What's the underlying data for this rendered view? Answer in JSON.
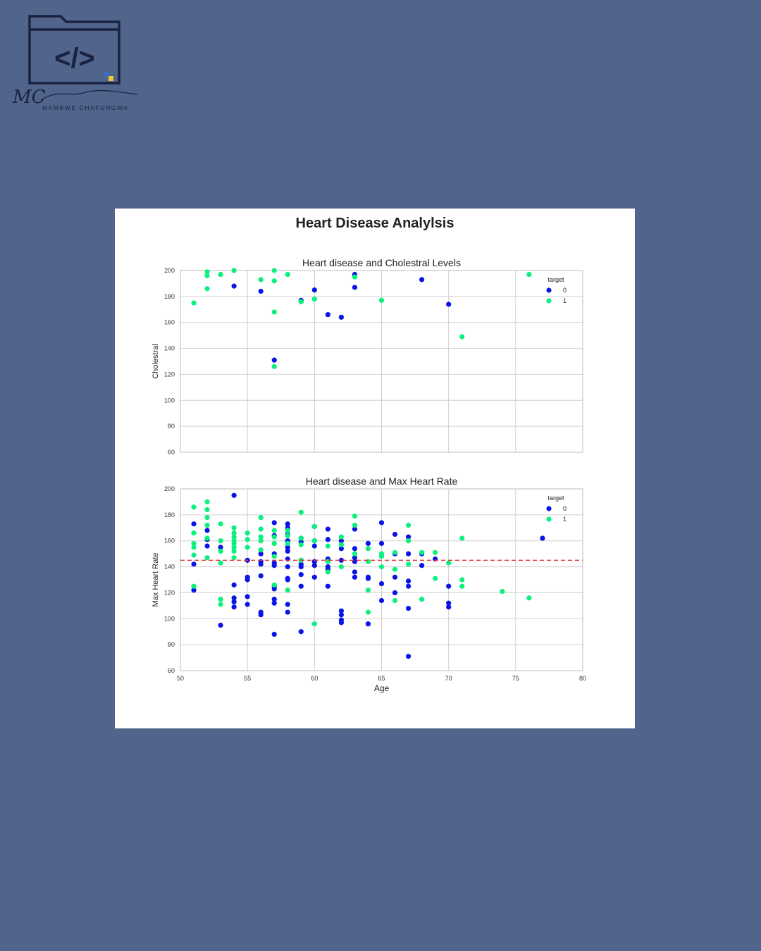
{
  "brand": {
    "monogram": "MC",
    "name": "MAMBWE CHAFUNGWA",
    "code_symbol": "</>"
  },
  "figure": {
    "title": "Heart Disease Analylsis"
  },
  "colors": {
    "target_0": "#0a14e6",
    "target_1": "#0cf07e",
    "mean_line": "#e53935",
    "background": "#50648c"
  },
  "chart_data": [
    {
      "type": "scatter",
      "title": "Heart disease and Cholestral Levels",
      "xlabel": "",
      "ylabel": "Cholestral",
      "xlim": [
        50,
        80
      ],
      "ylim": [
        60,
        200
      ],
      "xticks": [
        "50",
        "55",
        "60",
        "65",
        "70",
        "75",
        "80"
      ],
      "yticks": [
        "60",
        "80",
        "100",
        "120",
        "140",
        "160",
        "180",
        "200"
      ],
      "show_xtick_labels": false,
      "grid": true,
      "legend": {
        "title": "target",
        "position": "top-right",
        "entries": [
          "0",
          "1"
        ]
      },
      "series": [
        {
          "name": "0",
          "color": "#0a14e6",
          "points": [
            [
              54,
              188
            ],
            [
              56,
              184
            ],
            [
              57,
              131
            ],
            [
              59,
              176
            ],
            [
              59,
              177
            ],
            [
              60,
              185
            ],
            [
              61,
              166
            ],
            [
              62,
              164
            ],
            [
              63,
              197
            ],
            [
              63,
              187
            ],
            [
              68,
              193
            ],
            [
              70,
              174
            ]
          ]
        },
        {
          "name": "1",
          "color": "#0cf07e",
          "points": [
            [
              51,
              175
            ],
            [
              52,
              196
            ],
            [
              52,
              199
            ],
            [
              52,
              186
            ],
            [
              53,
              197
            ],
            [
              54,
              200
            ],
            [
              56,
              193
            ],
            [
              57,
              200
            ],
            [
              57,
              192
            ],
            [
              57,
              168
            ],
            [
              57,
              126
            ],
            [
              58,
              197
            ],
            [
              59,
              176
            ],
            [
              60,
              178
            ],
            [
              63,
              195
            ],
            [
              65,
              177
            ],
            [
              71,
              149
            ],
            [
              76,
              197
            ]
          ]
        }
      ]
    },
    {
      "type": "scatter",
      "title": "Heart disease and Max Heart Rate",
      "xlabel": "Age",
      "ylabel": "Max Heart Rate",
      "xlim": [
        50,
        80
      ],
      "ylim": [
        60,
        200
      ],
      "xticks": [
        "50",
        "55",
        "60",
        "65",
        "70",
        "75",
        "80"
      ],
      "yticks": [
        "60",
        "80",
        "100",
        "120",
        "140",
        "160",
        "180",
        "200"
      ],
      "show_xtick_labels": true,
      "grid": true,
      "mean_line": 145,
      "legend": {
        "title": "target",
        "position": "top-right",
        "entries": [
          "0",
          "1"
        ]
      },
      "series": [
        {
          "name": "0",
          "color": "#0a14e6",
          "points": [
            [
              51,
              173
            ],
            [
              51,
              142
            ],
            [
              51,
              122
            ],
            [
              52,
              168
            ],
            [
              52,
              161
            ],
            [
              52,
              156
            ],
            [
              53,
              155
            ],
            [
              53,
              95
            ],
            [
              54,
              195
            ],
            [
              54,
              126
            ],
            [
              54,
              116
            ],
            [
              54,
              113
            ],
            [
              54,
              109
            ],
            [
              55,
              145
            ],
            [
              55,
              132
            ],
            [
              55,
              130
            ],
            [
              55,
              117
            ],
            [
              55,
              111
            ],
            [
              56,
              150
            ],
            [
              56,
              144
            ],
            [
              56,
              142
            ],
            [
              56,
              133
            ],
            [
              56,
              105
            ],
            [
              56,
              103
            ],
            [
              57,
              174
            ],
            [
              57,
              164
            ],
            [
              57,
              150
            ],
            [
              57,
              143
            ],
            [
              57,
              141
            ],
            [
              57,
              125
            ],
            [
              57,
              123
            ],
            [
              57,
              115
            ],
            [
              57,
              112
            ],
            [
              57,
              88
            ],
            [
              58,
              173
            ],
            [
              58,
              170
            ],
            [
              58,
              165
            ],
            [
              58,
              160
            ],
            [
              58,
              155
            ],
            [
              58,
              152
            ],
            [
              58,
              146
            ],
            [
              58,
              140
            ],
            [
              58,
              131
            ],
            [
              58,
              130
            ],
            [
              58,
              111
            ],
            [
              58,
              105
            ],
            [
              59,
              162
            ],
            [
              59,
              159
            ],
            [
              59,
              145
            ],
            [
              59,
              142
            ],
            [
              59,
              140
            ],
            [
              59,
              134
            ],
            [
              59,
              125
            ],
            [
              59,
              90
            ],
            [
              60,
              171
            ],
            [
              60,
              160
            ],
            [
              60,
              156
            ],
            [
              60,
              144
            ],
            [
              60,
              141
            ],
            [
              60,
              132
            ],
            [
              61,
              169
            ],
            [
              61,
              161
            ],
            [
              61,
              146
            ],
            [
              61,
              140
            ],
            [
              61,
              138
            ],
            [
              61,
              125
            ],
            [
              62,
              160
            ],
            [
              62,
              154
            ],
            [
              62,
              145
            ],
            [
              62,
              106
            ],
            [
              62,
              103
            ],
            [
              62,
              99
            ],
            [
              62,
              97
            ],
            [
              63,
              169
            ],
            [
              63,
              154
            ],
            [
              63,
              147
            ],
            [
              63,
              144
            ],
            [
              63,
              136
            ],
            [
              63,
              132
            ],
            [
              64,
              158
            ],
            [
              64,
              132
            ],
            [
              64,
              131
            ],
            [
              64,
              96
            ],
            [
              65,
              174
            ],
            [
              65,
              158
            ],
            [
              65,
              127
            ],
            [
              65,
              114
            ],
            [
              66,
              165
            ],
            [
              66,
              150
            ],
            [
              66,
              132
            ],
            [
              66,
              120
            ],
            [
              67,
              163
            ],
            [
              67,
              150
            ],
            [
              67,
              129
            ],
            [
              67,
              125
            ],
            [
              67,
              108
            ],
            [
              67,
              71
            ],
            [
              68,
              150
            ],
            [
              68,
              141
            ],
            [
              69,
              146
            ],
            [
              70,
              125
            ],
            [
              70,
              112
            ],
            [
              70,
              109
            ],
            [
              77,
              162
            ]
          ]
        },
        {
          "name": "1",
          "color": "#0cf07e",
          "points": [
            [
              51,
              186
            ],
            [
              51,
              166
            ],
            [
              51,
              158
            ],
            [
              51,
              155
            ],
            [
              51,
              149
            ],
            [
              51,
              125
            ],
            [
              52,
              190
            ],
            [
              52,
              184
            ],
            [
              52,
              178
            ],
            [
              52,
              172
            ],
            [
              52,
              162
            ],
            [
              52,
              147
            ],
            [
              53,
              173
            ],
            [
              53,
              160
            ],
            [
              53,
              152
            ],
            [
              53,
              143
            ],
            [
              53,
              115
            ],
            [
              53,
              111
            ],
            [
              54,
              170
            ],
            [
              54,
              166
            ],
            [
              54,
              163
            ],
            [
              54,
              160
            ],
            [
              54,
              158
            ],
            [
              54,
              155
            ],
            [
              54,
              152
            ],
            [
              54,
              147
            ],
            [
              55,
              166
            ],
            [
              55,
              161
            ],
            [
              55,
              155
            ],
            [
              56,
              178
            ],
            [
              56,
              169
            ],
            [
              56,
              163
            ],
            [
              56,
              160
            ],
            [
              56,
              153
            ],
            [
              57,
              168
            ],
            [
              57,
              163
            ],
            [
              57,
              158
            ],
            [
              57,
              148
            ],
            [
              57,
              126
            ],
            [
              58,
              168
            ],
            [
              58,
              164
            ],
            [
              58,
              158
            ],
            [
              58,
              122
            ],
            [
              59,
              182
            ],
            [
              59,
              162
            ],
            [
              59,
              157
            ],
            [
              59,
              145
            ],
            [
              60,
              171
            ],
            [
              60,
              160
            ],
            [
              60,
              96
            ],
            [
              61,
              156
            ],
            [
              61,
              144
            ],
            [
              61,
              136
            ],
            [
              62,
              163
            ],
            [
              62,
              157
            ],
            [
              62,
              140
            ],
            [
              63,
              179
            ],
            [
              63,
              172
            ],
            [
              63,
              150
            ],
            [
              64,
              154
            ],
            [
              64,
              144
            ],
            [
              64,
              122
            ],
            [
              64,
              105
            ],
            [
              65,
              150
            ],
            [
              65,
              148
            ],
            [
              65,
              140
            ],
            [
              66,
              151
            ],
            [
              66,
              138
            ],
            [
              66,
              114
            ],
            [
              67,
              172
            ],
            [
              67,
              160
            ],
            [
              67,
              142
            ],
            [
              68,
              151
            ],
            [
              68,
              115
            ],
            [
              69,
              151
            ],
            [
              69,
              131
            ],
            [
              70,
              143
            ],
            [
              71,
              162
            ],
            [
              71,
              130
            ],
            [
              71,
              125
            ],
            [
              74,
              121
            ],
            [
              76,
              116
            ]
          ]
        }
      ]
    }
  ]
}
